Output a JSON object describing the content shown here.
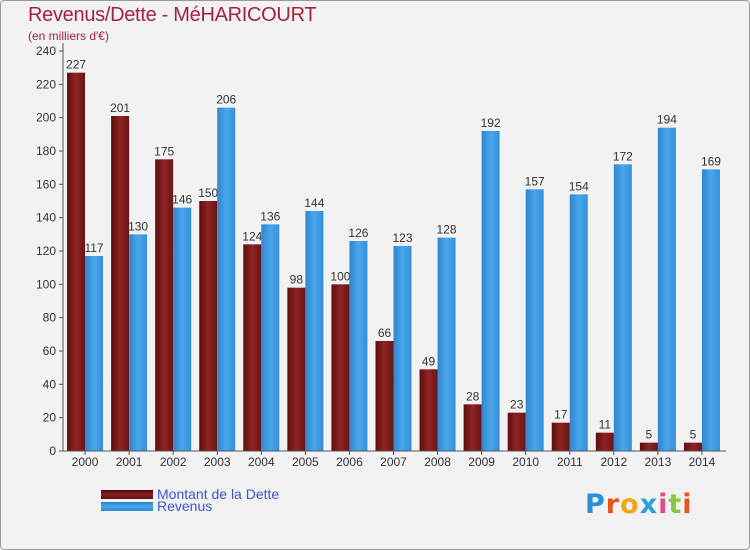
{
  "title": "Revenus/Dette - MéHARICOURT",
  "unit_label": "(en milliers d'€)",
  "brand": {
    "text": "Proxiti",
    "colors": [
      "#2b8fd6",
      "#e8551d",
      "#f2a51a",
      "#2c9fd8",
      "#e44c8a",
      "#8cc63f",
      "#e8551d"
    ]
  },
  "chart_data": {
    "type": "bar",
    "categories": [
      "2000",
      "2001",
      "2002",
      "2003",
      "2004",
      "2005",
      "2006",
      "2007",
      "2008",
      "2009",
      "2010",
      "2011",
      "2012",
      "2013",
      "2014"
    ],
    "series": [
      {
        "name": "Montant de la Dette",
        "color": "#8b2020",
        "values": [
          227,
          201,
          175,
          150,
          124,
          98,
          100,
          66,
          49,
          28,
          23,
          17,
          11,
          5,
          5
        ]
      },
      {
        "name": "Revenus",
        "color": "#3f9be0",
        "values": [
          117,
          130,
          146,
          206,
          136,
          144,
          126,
          123,
          128,
          192,
          157,
          154,
          172,
          194,
          169
        ]
      }
    ],
    "ylim": [
      0,
      240
    ],
    "yticks": [
      0,
      20,
      40,
      60,
      80,
      100,
      120,
      140,
      160,
      180,
      200,
      220,
      240
    ],
    "grid": false,
    "legend": "bottom-left"
  }
}
